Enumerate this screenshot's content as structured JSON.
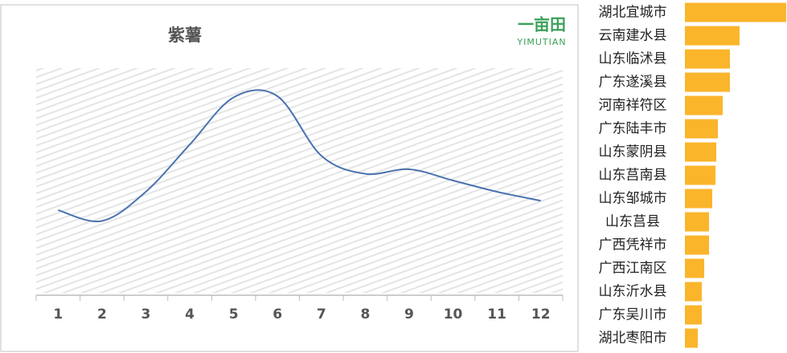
{
  "chart_data": [
    {
      "type": "line",
      "title": "紫薯",
      "logo_mark": "一亩田",
      "logo_text": "YIMUTIAN",
      "categories": [
        "1",
        "2",
        "3",
        "4",
        "5",
        "6",
        "7",
        "8",
        "9",
        "10",
        "11",
        "12"
      ],
      "values": [
        36.8,
        32,
        45,
        66,
        87,
        87.5,
        61,
        53,
        55,
        50,
        45,
        41
      ],
      "color": "#4a72b0",
      "ylim": [
        0,
        100
      ],
      "grid": true
    },
    {
      "type": "bar",
      "orientation": "horizontal",
      "categories": [
        "湖北宜城市",
        "云南建水县",
        "山东临沭县",
        "广东遂溪县",
        "河南祥符区",
        "广东陆丰市",
        "山东蒙阴县",
        "山东莒南县",
        "山东邹城市",
        "山东莒县",
        "广西凭祥市",
        "广西江南区",
        "山东沂水县",
        "广东吴川市",
        "湖北枣阳市"
      ],
      "values": [
        126,
        68,
        56,
        56,
        47,
        41,
        39,
        38,
        34,
        30,
        30,
        24,
        21,
        21,
        16
      ],
      "color": "#fbb52b",
      "xlim": [
        0,
        127
      ]
    }
  ]
}
